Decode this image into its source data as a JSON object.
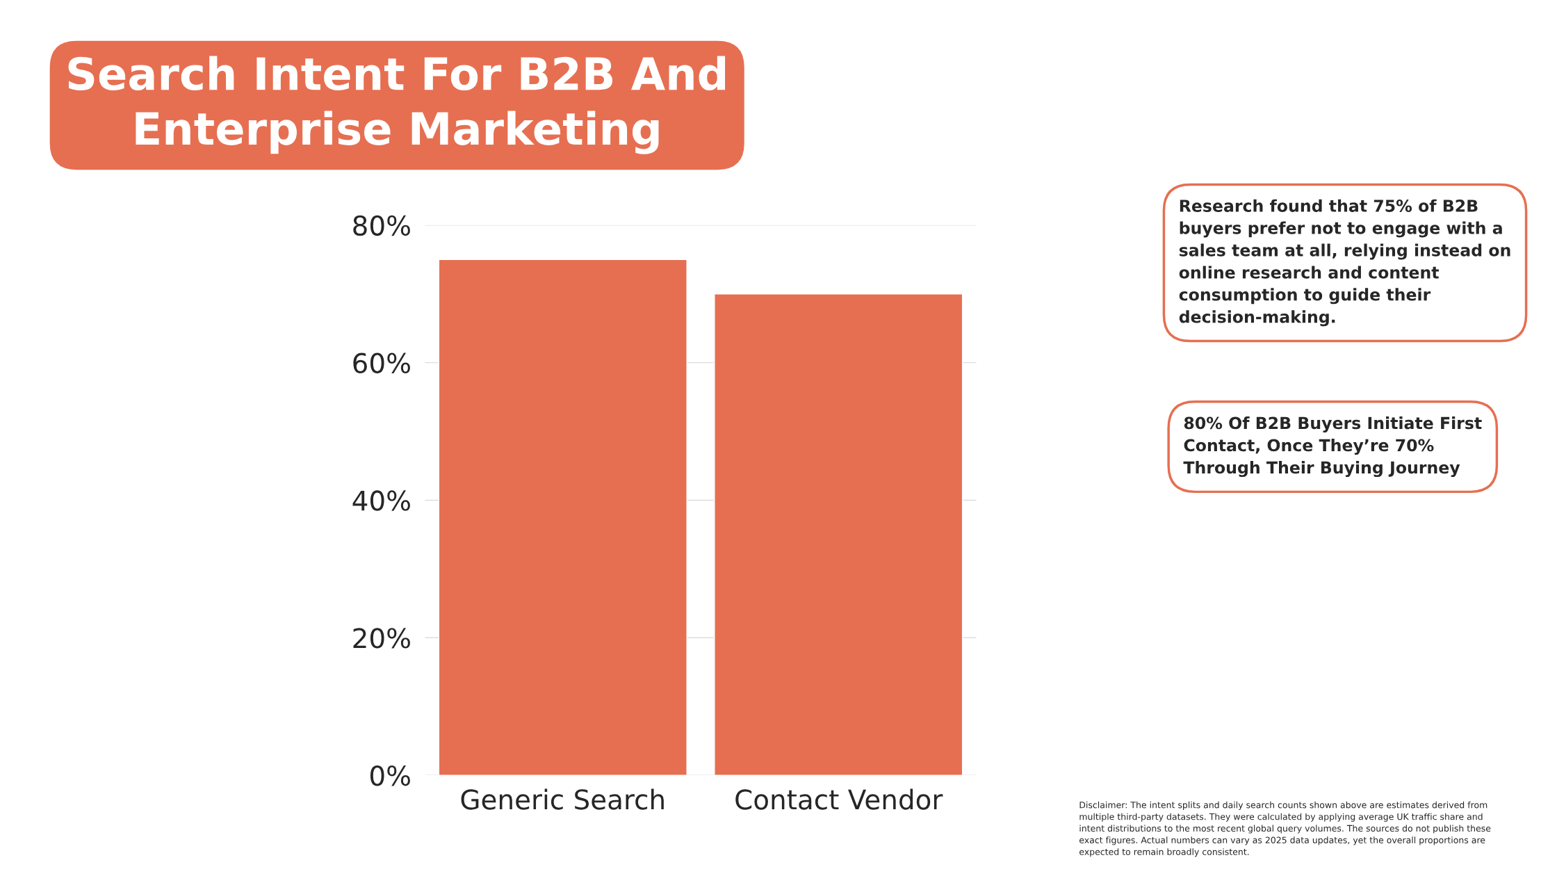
{
  "chart_data": {
    "type": "bar",
    "title": "Search Intent For B2B And\nEnterprise Marketing",
    "categories": [
      "Generic Search",
      "Contact Vendor"
    ],
    "values": [
      75,
      70
    ],
    "color": "#e66f51",
    "ylim": [
      0,
      80
    ],
    "yticks": [
      {
        "value": 0,
        "label": "0%"
      },
      {
        "value": 20,
        "label": "20%"
      },
      {
        "value": 40,
        "label": "40%"
      },
      {
        "value": 60,
        "label": "60%"
      },
      {
        "value": 80,
        "label": "80%"
      }
    ],
    "grid": "y",
    "annotations": [
      "Research found that 75% of B2B\nbuyers prefer not to engage with a\nsales team at all, relying instead on\nonline research and content\nconsumption to guide their\ndecision-making.",
      "80% Of B2B Buyers Initiate First\nContact, Once They’re 70%\nThrough Their Buying Journey",
      "Disclaimer: The intent splits and daily search counts shown above are estimates derived from\nmultiple third-party datasets. They were calculated by applying average UK traffic share and\nintent distributions to the most recent global query volumes. The sources do not publish these\nexact figures. Actual numbers can vary as 2025 data updates, yet the overall proportions are\nexpected to remain broadly consistent."
    ]
  }
}
